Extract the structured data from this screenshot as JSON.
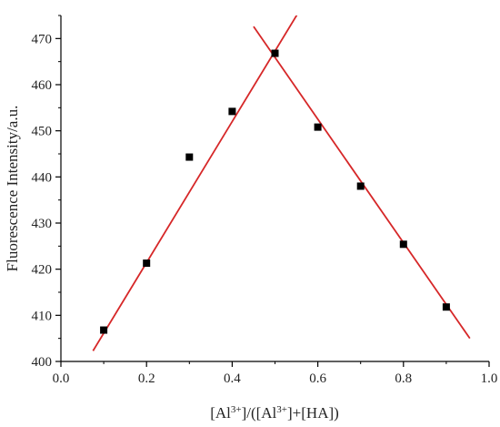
{
  "chart_data": {
    "type": "scatter",
    "ylabel": "Fluorescence Intensity/a.u.",
    "xlabel_parts": {
      "p1": "[Al",
      "sup1": "3+",
      "p2": "]/([Al",
      "sup2": "3+",
      "p3": "]+[HA])"
    },
    "xlim": [
      0.0,
      1.0
    ],
    "ylim": [
      400,
      475
    ],
    "x_ticks": [
      "0.0",
      "0.2",
      "0.4",
      "0.6",
      "0.8",
      "1.0"
    ],
    "y_ticks": [
      "400",
      "410",
      "420",
      "430",
      "440",
      "450",
      "460",
      "470"
    ],
    "grid": false,
    "series": [
      {
        "marker": "square",
        "color": "#000000",
        "points": [
          {
            "x": 0.1,
            "y": 406.8
          },
          {
            "x": 0.2,
            "y": 421.3
          },
          {
            "x": 0.3,
            "y": 444.3
          },
          {
            "x": 0.4,
            "y": 454.2
          },
          {
            "x": 0.5,
            "y": 466.8
          },
          {
            "x": 0.6,
            "y": 450.8
          },
          {
            "x": 0.7,
            "y": 438.0
          },
          {
            "x": 0.8,
            "y": 425.4
          },
          {
            "x": 0.9,
            "y": 411.8
          }
        ]
      }
    ],
    "fit_lines": [
      {
        "color": "#d62728",
        "x1": 0.075,
        "y1": 402.3,
        "x2": 0.57,
        "y2": 478.0
      },
      {
        "color": "#d62728",
        "x1": 0.45,
        "y1": 472.6,
        "x2": 0.955,
        "y2": 405.0
      }
    ]
  }
}
